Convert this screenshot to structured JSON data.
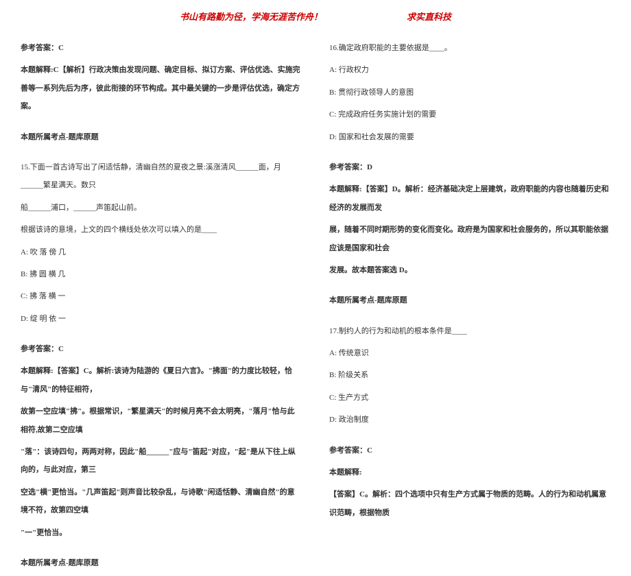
{
  "header": {
    "left": "书山有路勤为径，学海无涯苦作舟！",
    "right": "求实直科技"
  },
  "left_col": {
    "answer14": "参考答案：C",
    "explain14": "本题解释:C【解析】行政决策由发现问题、确定目标、拟订方案、评估优选、实施完善等一系列先后为序，彼此衔接的环节构成。其中最关键的一步是评估优选，确定方案。",
    "point14": "本题所属考点-题库原题",
    "q15_stem": "15.下面一首古诗写出了闲适恬静，清幽自然的夏夜之景:溪涨清风______面，月______繁星满天。数只",
    "q15_stem2": "船______浦口，______声笛起山前。",
    "q15_prompt": "根据该诗的意境，上文的四个横线处依次可以填入的是____",
    "q15_a": "A: 吹 落 傍 几",
    "q15_b": "B: 拂 圆 横 几",
    "q15_c": "C: 拂 落 横 一",
    "q15_d": "D: 绽 明 依 一",
    "answer15": "参考答案：C",
    "explain15_1": "本题解释:【答案】C。解析:该诗为陆游的《夏日六言》。\"拂面\"的力度比较轻，恰与\"清风\"的特征相符，",
    "explain15_2": "故第一空应填\"拂\"。根据常识，\"繁星满天\"的时候月亮不会太明亮，\"落月\"恰与此相符,故第二空应填",
    "explain15_3": "\"落\"：该诗四句，两两对称，因此\"船______\"应与\"笛起\"对应，\"起\"是从下往上纵向的，与此对应，第三",
    "explain15_4": "空选\"横\"更恰当。\"几声笛起\"则声音比较杂乱，与诗歌\"闲适恬静、清幽自然\"的意境不符，故第四空填",
    "explain15_5": "\"一\"更恰当。",
    "point15": "本题所属考点-题库原题"
  },
  "right_col": {
    "q16_stem": "16.确定政府职能的主要依据是____。",
    "q16_a": "A: 行政权力",
    "q16_b": "B: 贯彻行政领导人的意图",
    "q16_c": "C: 完成政府任务实施计划的需要",
    "q16_d": "D: 国家和社会发展的需要",
    "answer16": "参考答案：D",
    "explain16_1": "本题解释:【答案】D。解析：经济基础决定上层建筑，政府职能的内容也随着历史和经济的发展而发",
    "explain16_2": "展，随着不同时期形势的变化而变化。政府是为国家和社会服务的，所以其职能依据应该是国家和社会",
    "explain16_3": "发展。故本题答案选 D。",
    "point16": "本题所属考点-题库原题",
    "q17_stem": "17.制约人的行为和动机的根本条件是____",
    "q17_a": "A: 传统意识",
    "q17_b": "B: 阶级关系",
    "q17_c": "C: 生产方式",
    "q17_d": "D: 政治制度",
    "answer17": "参考答案：C",
    "explain17_label": "本题解释:",
    "explain17_1": "【答案】C。解析：四个选项中只有生产方式属于物质的范畴。人的行为和动机属意识范畴，根据物质"
  },
  "style": {
    "text_color": "#333333",
    "header_color": "#cc0000",
    "background": "#ffffff",
    "font_size_body": 11,
    "font_size_header": 13,
    "line_height": 2.4
  }
}
